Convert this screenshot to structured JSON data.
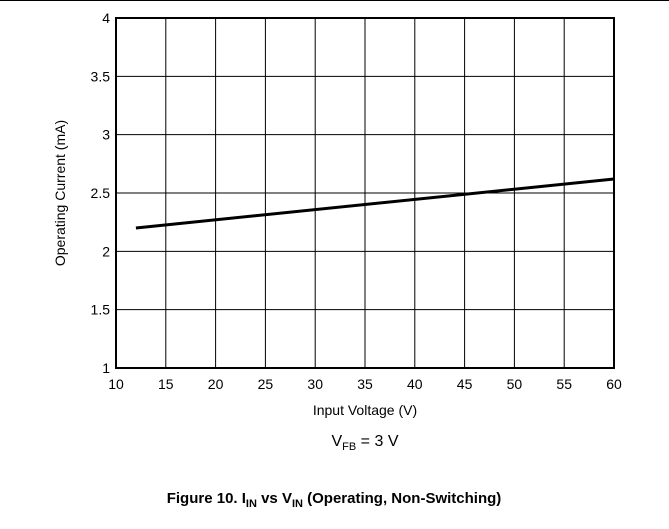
{
  "figure": {
    "caption_prefix": "Figure 10. I",
    "caption_sub_1": "IN",
    "caption_mid": " vs V",
    "caption_sub_2": "IN",
    "caption_suffix": " (Operating, Non-Switching)",
    "condition_main": "V",
    "condition_sub": "FB",
    "condition_value": " = 3 V"
  },
  "chart_data": {
    "type": "line",
    "title": "",
    "xlabel": "Input Voltage (V)",
    "ylabel": "Operating Current (mA)",
    "xlim": [
      10,
      60
    ],
    "ylim": [
      1,
      4
    ],
    "xticks": [
      10,
      15,
      20,
      25,
      30,
      35,
      40,
      45,
      50,
      55,
      60
    ],
    "yticks": [
      1,
      1.5,
      2,
      2.5,
      3,
      3.5,
      4
    ],
    "xtick_labels": [
      "10",
      "15",
      "20",
      "25",
      "30",
      "35",
      "40",
      "45",
      "50",
      "55",
      "60"
    ],
    "ytick_labels": [
      "1",
      "1.5",
      "2",
      "2.5",
      "3",
      "3.5",
      "4"
    ],
    "grid": true,
    "series": [
      {
        "x": [
          12,
          60
        ],
        "y": [
          2.2,
          2.62
        ],
        "color": "#000000"
      }
    ]
  }
}
